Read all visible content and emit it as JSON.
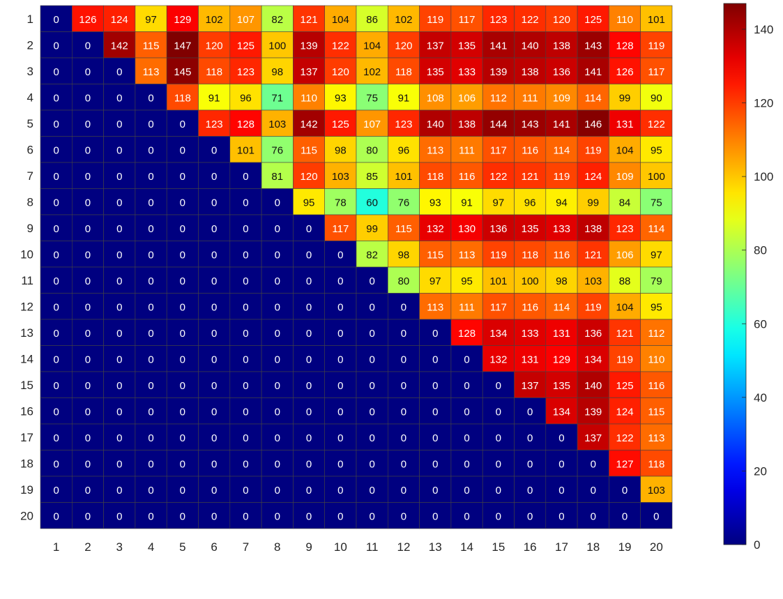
{
  "chart_data": {
    "type": "heatmap",
    "title": "",
    "xlabel": "",
    "ylabel": "",
    "x": [
      1,
      2,
      3,
      4,
      5,
      6,
      7,
      8,
      9,
      10,
      11,
      12,
      13,
      14,
      15,
      16,
      17,
      18,
      19,
      20
    ],
    "y": [
      1,
      2,
      3,
      4,
      5,
      6,
      7,
      8,
      9,
      10,
      11,
      12,
      13,
      14,
      15,
      16,
      17,
      18,
      19,
      20
    ],
    "values": [
      [
        0,
        126,
        124,
        97,
        129,
        102,
        107,
        82,
        121,
        104,
        86,
        102,
        119,
        117,
        123,
        122,
        120,
        125,
        110,
        101
      ],
      [
        0,
        0,
        142,
        115,
        147,
        120,
        125,
        100,
        139,
        122,
        104,
        120,
        137,
        135,
        141,
        140,
        138,
        143,
        128,
        119
      ],
      [
        0,
        0,
        0,
        113,
        145,
        118,
        123,
        98,
        137,
        120,
        102,
        118,
        135,
        133,
        139,
        138,
        136,
        141,
        126,
        117
      ],
      [
        0,
        0,
        0,
        0,
        118,
        91,
        96,
        71,
        110,
        93,
        75,
        91,
        108,
        106,
        112,
        111,
        109,
        114,
        99,
        90
      ],
      [
        0,
        0,
        0,
        0,
        0,
        123,
        128,
        103,
        142,
        125,
        107,
        123,
        140,
        138,
        144,
        143,
        141,
        146,
        131,
        122
      ],
      [
        0,
        0,
        0,
        0,
        0,
        0,
        101,
        76,
        115,
        98,
        80,
        96,
        113,
        111,
        117,
        116,
        114,
        119,
        104,
        95
      ],
      [
        0,
        0,
        0,
        0,
        0,
        0,
        0,
        81,
        120,
        103,
        85,
        101,
        118,
        116,
        122,
        121,
        119,
        124,
        109,
        100
      ],
      [
        0,
        0,
        0,
        0,
        0,
        0,
        0,
        0,
        95,
        78,
        60,
        76,
        93,
        91,
        97,
        96,
        94,
        99,
        84,
        75
      ],
      [
        0,
        0,
        0,
        0,
        0,
        0,
        0,
        0,
        0,
        117,
        99,
        115,
        132,
        130,
        136,
        135,
        133,
        138,
        123,
        114
      ],
      [
        0,
        0,
        0,
        0,
        0,
        0,
        0,
        0,
        0,
        0,
        82,
        98,
        115,
        113,
        119,
        118,
        116,
        121,
        106,
        97
      ],
      [
        0,
        0,
        0,
        0,
        0,
        0,
        0,
        0,
        0,
        0,
        0,
        80,
        97,
        95,
        101,
        100,
        98,
        103,
        88,
        79
      ],
      [
        0,
        0,
        0,
        0,
        0,
        0,
        0,
        0,
        0,
        0,
        0,
        0,
        113,
        111,
        117,
        116,
        114,
        119,
        104,
        95
      ],
      [
        0,
        0,
        0,
        0,
        0,
        0,
        0,
        0,
        0,
        0,
        0,
        0,
        0,
        128,
        134,
        133,
        131,
        136,
        121,
        112
      ],
      [
        0,
        0,
        0,
        0,
        0,
        0,
        0,
        0,
        0,
        0,
        0,
        0,
        0,
        0,
        132,
        131,
        129,
        134,
        119,
        110
      ],
      [
        0,
        0,
        0,
        0,
        0,
        0,
        0,
        0,
        0,
        0,
        0,
        0,
        0,
        0,
        0,
        137,
        135,
        140,
        125,
        116
      ],
      [
        0,
        0,
        0,
        0,
        0,
        0,
        0,
        0,
        0,
        0,
        0,
        0,
        0,
        0,
        0,
        0,
        134,
        139,
        124,
        115
      ],
      [
        0,
        0,
        0,
        0,
        0,
        0,
        0,
        0,
        0,
        0,
        0,
        0,
        0,
        0,
        0,
        0,
        0,
        137,
        122,
        113
      ],
      [
        0,
        0,
        0,
        0,
        0,
        0,
        0,
        0,
        0,
        0,
        0,
        0,
        0,
        0,
        0,
        0,
        0,
        0,
        127,
        118
      ],
      [
        0,
        0,
        0,
        0,
        0,
        0,
        0,
        0,
        0,
        0,
        0,
        0,
        0,
        0,
        0,
        0,
        0,
        0,
        0,
        103
      ],
      [
        0,
        0,
        0,
        0,
        0,
        0,
        0,
        0,
        0,
        0,
        0,
        0,
        0,
        0,
        0,
        0,
        0,
        0,
        0,
        0
      ]
    ],
    "colormap": "jet",
    "clim": [
      0,
      147
    ],
    "colorbar": {
      "position": "right",
      "ticks": [
        0,
        20,
        40,
        60,
        80,
        100,
        120,
        140
      ],
      "tick_labels": [
        "0",
        "20",
        "40",
        "60",
        "80",
        "100",
        "120",
        "140"
      ]
    },
    "grid": false,
    "cell_labels": true,
    "colors": {
      "cell_border": "#444444",
      "label_light": "#ffffff",
      "label_dark": "#111111",
      "axis_text": "#262626"
    }
  }
}
